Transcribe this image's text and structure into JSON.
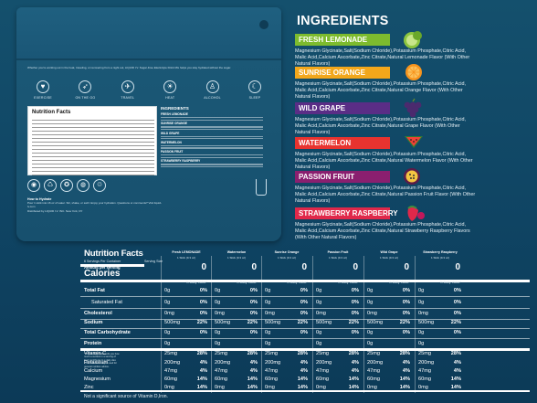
{
  "bag": {
    "intro": "Whether you’re working out in the heat, traveling, or recovering from a night out, LIQUID I.V. Sugar-Free Electrolyte Drink Mix helps you stay hydrated without the sugar.",
    "icons": [
      {
        "label": "EXERCISE",
        "glyph": "♥"
      },
      {
        "label": "ON THE GO",
        "glyph": "➶"
      },
      {
        "label": "TRAVEL",
        "glyph": "✈"
      },
      {
        "label": "HEAT",
        "glyph": "☀"
      },
      {
        "label": "ALCOHOL",
        "glyph": "♙"
      },
      {
        "label": "SLEEP",
        "glyph": "☾"
      }
    ],
    "mini_label_title": "Nutrition Facts",
    "mini_ingredients_title": "INGREDIENTS",
    "mini_flavors": [
      "FRESH LEMONADE",
      "SUNRISE ORANGE",
      "WILD GRAPE",
      "WATERMELON",
      "PASSION FRUIT",
      "STRAWBERRY RASPBERRY"
    ],
    "badges": [
      "◉",
      "♺",
      "✪",
      "◍",
      "♲"
    ],
    "how_title": "How to Hydrate",
    "how_text": "Pour 1 stick into 16 oz of water. Stir, shake, or swirl. Enjoy your hydration. Questions or comments? Visit liquid-iv.com",
    "company": "Distributed by LIQUID I.V. INC. New York, NY"
  },
  "ingredients": {
    "title": "INGREDIENTS",
    "flavors": [
      {
        "name": "FRESH LEMONADE",
        "color": "#7dbb2e",
        "fruit": "lime",
        "text": "Magnesium Glycinate,Salt(Sodium Chloride),Potassium Phosphate,Citric Acid, Malic Acid,Calcium Ascorbate,Zinc Citrate,Natural Lemonade Flavor (With Other Natural Flavors)"
      },
      {
        "name": "SUNRISE ORANGE",
        "color": "#f2a71b",
        "fruit": "orange",
        "text": "Magnesium Glycinate,Salt(Sodium Chloride),Potassium Phosphate,Citric Acid, Malic Acid,Calcium Ascorbate,Zinc Citrate,Natural Orange Flavor (With Other Natural Flavors)"
      },
      {
        "name": "WILD GRAPE",
        "color": "#5a2d86",
        "fruit": "grape",
        "text": "Magnesium Glycinate,Salt(Sodium Chloride),Potassium Phosphate,Citric Acid, Malic Acid,Calcium Ascorbate,Zinc Citrate,Natural Grape Flavor (With Other Natural Flavors)"
      },
      {
        "name": "WATERMELON",
        "color": "#e8332f",
        "fruit": "watermelon",
        "text": "Magnesium Glycinate,Salt(Sodium Chloride),Potassium Phosphate,Citric Acid, Malic Acid,Calcium Ascorbate,Zinc Citrate,Natural Watermelon Flavor (With Other Natural Flavors)"
      },
      {
        "name": "PASSION FRUIT",
        "color": "#8a1f6f",
        "fruit": "passion",
        "text": "Magnesium Glycinate,Salt(Sodium Chloride),Potassium Phosphate,Citric Acid, Malic Acid,Calcium Ascorbate,Zinc Citrate,Natural Passion Fruit Flavor (With Other Natural Flavors)"
      },
      {
        "name": "STRAWBERRY RASPBERRY",
        "color": "#e0284a",
        "fruit": "strawberry",
        "text": "Magnesium Glycinate,Salt(Sodium Chloride),Potassium Phosphate,Citric Acid, Malic Acid,Calcium Ascorbate,Zinc Citrate,Natural Strawberry Raspberry Flavors (With Other Natural Flavors)"
      }
    ]
  },
  "nutrition": {
    "title": "Nutrition Facts",
    "servings": "6 Servings Per Container",
    "serving_size": "Serving Size",
    "amount_per": "Amount per serving",
    "calories_label": "Calories",
    "dv_header": "% Daily Value*",
    "rows": [
      {
        "label": "Total Fat",
        "bold": true,
        "indent": false
      },
      {
        "label": "Saturated Fat",
        "bold": false,
        "indent": true
      },
      {
        "label": "Cholesterol",
        "bold": true,
        "indent": false
      },
      {
        "label": "Sodium",
        "bold": true,
        "indent": false
      },
      {
        "label": "Total Carbohydrate",
        "bold": true,
        "indent": false
      },
      {
        "label": "Protein",
        "bold": true,
        "indent": false
      },
      {
        "label": "Vitamin C",
        "bold": false,
        "indent": false
      },
      {
        "label": "Potassium",
        "bold": false,
        "indent": false
      },
      {
        "label": "Calcium",
        "bold": false,
        "indent": false
      },
      {
        "label": "Magnesium",
        "bold": false,
        "indent": false
      },
      {
        "label": "Zinc",
        "bold": false,
        "indent": false
      }
    ],
    "footnote": "* The % Daily Value tells you how much a nutrient in a serving of food contributes to a daily diet. 2,000 calories a day is used for general nutrition advice.",
    "footer": "Not a significant source of Vitamin D,Iron.",
    "columns": [
      {
        "name": "Fresh LEMONADE",
        "serving": "1 Stick (9.3 oz)",
        "calories": "0",
        "amounts": [
          "0g",
          "0g",
          "0mg",
          "500mg",
          "0g",
          "0g",
          "25mg",
          "200mg",
          "47mg",
          "60mg",
          "0mg"
        ],
        "pcts": [
          "0%",
          "0%",
          "0%",
          "22%",
          "0%",
          "",
          "28%",
          "4%",
          "4%",
          "14%",
          "14%"
        ]
      },
      {
        "name": "Watermelon",
        "serving": "1 Stick (9.3 oz)",
        "calories": "0",
        "amounts": [
          "0g",
          "0g",
          "0mg",
          "500mg",
          "0g",
          "0g",
          "25mg",
          "200mg",
          "47mg",
          "60mg",
          "0mg"
        ],
        "pcts": [
          "0%",
          "0%",
          "0%",
          "22%",
          "0%",
          "",
          "28%",
          "4%",
          "4%",
          "14%",
          "14%"
        ]
      },
      {
        "name": "Sunrise Orange",
        "serving": "1 Stick (9.3 oz)",
        "calories": "0",
        "amounts": [
          "0g",
          "0g",
          "0mg",
          "500mg",
          "0g",
          "0g",
          "25mg",
          "200mg",
          "47mg",
          "60mg",
          "0mg"
        ],
        "pcts": [
          "0%",
          "0%",
          "0%",
          "22%",
          "0%",
          "",
          "28%",
          "4%",
          "4%",
          "14%",
          "14%"
        ]
      },
      {
        "name": "Passion Fruit",
        "serving": "1 Stick (9.3 oz)",
        "calories": "0",
        "amounts": [
          "0g",
          "0g",
          "0mg",
          "500mg",
          "0g",
          "0g",
          "25mg",
          "200mg",
          "47mg",
          "60mg",
          "0mg"
        ],
        "pcts": [
          "0%",
          "0%",
          "0%",
          "22%",
          "0%",
          "",
          "28%",
          "4%",
          "4%",
          "14%",
          "14%"
        ]
      },
      {
        "name": "Wild Grape",
        "serving": "1 Stick (9.3 oz)",
        "calories": "0",
        "amounts": [
          "0g",
          "0g",
          "0mg",
          "500mg",
          "0g",
          "0g",
          "25mg",
          "200mg",
          "47mg",
          "60mg",
          "0mg"
        ],
        "pcts": [
          "0%",
          "0%",
          "0%",
          "22%",
          "0%",
          "",
          "28%",
          "4%",
          "4%",
          "14%",
          "14%"
        ]
      },
      {
        "name": "Strawberry Raspberry",
        "serving": "1 Stick (9.3 oz)",
        "calories": "0",
        "amounts": [
          "0g",
          "0g",
          "0mg",
          "500mg",
          "0g",
          "0g",
          "25mg",
          "200mg",
          "47mg",
          "60mg",
          "0mg"
        ],
        "pcts": [
          "0%",
          "0%",
          "0%",
          "22%",
          "0%",
          "",
          "28%",
          "4%",
          "4%",
          "14%",
          "14%"
        ]
      }
    ]
  }
}
